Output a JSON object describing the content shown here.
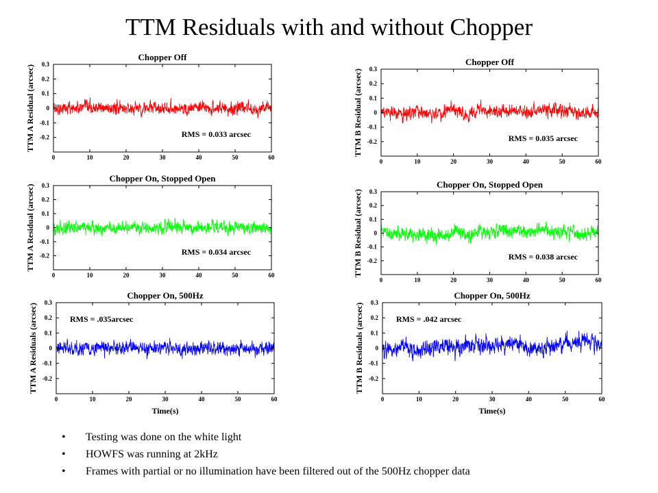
{
  "title": "TTM Residuals with and without Chopper",
  "bullets": [
    {
      "marker": "•",
      "text": "Testing was done on the white light"
    },
    {
      "marker": "•",
      "text": "HOWFS was running at 2kHz"
    },
    {
      "marker": "•",
      "text": "Frames with partial or no illumination have been filtered out of the 500Hz chopper data"
    }
  ],
  "chart_data": [
    {
      "type": "line",
      "title": "Chopper Off",
      "xlabel": "",
      "ylabel": "TTM A Residual (arcsec)",
      "xlim": [
        0,
        60
      ],
      "ylim": [
        -0.3,
        0.3
      ],
      "xticks": [
        "0",
        "10",
        "20",
        "30",
        "40",
        "50",
        "60"
      ],
      "yticks": [
        "0.3",
        "0.2",
        "0.1",
        "0",
        "-0.1",
        "-0.2"
      ],
      "annotation": "RMS = 0.033 arcsec",
      "annotation_corner": "bottom-right",
      "series": [
        {
          "color": "#ff0000",
          "rms": 0.033,
          "mean": 0.0,
          "drift": []
        }
      ],
      "grid": false
    },
    {
      "type": "line",
      "title": "Chopper Off",
      "xlabel": "",
      "ylabel": "TTM B Residual (arcsec)",
      "xlim": [
        0,
        60
      ],
      "ylim": [
        -0.3,
        0.3
      ],
      "xticks": [
        "0",
        "10",
        "20",
        "30",
        "40",
        "50",
        "60"
      ],
      "yticks": [
        "0.3",
        "0.2",
        "0.1",
        "0",
        "-0.1",
        "-0.2"
      ],
      "annotation": "RMS = 0.035 arcsec",
      "annotation_corner": "bottom-right",
      "series": [
        {
          "color": "#ff0000",
          "rms": 0.035,
          "mean": 0.0,
          "drift": [
            [
              0,
              0.01
            ],
            [
              5,
              -0.02
            ],
            [
              10,
              0.01
            ],
            [
              15,
              -0.01
            ],
            [
              20,
              0.02
            ],
            [
              24,
              -0.02
            ],
            [
              27,
              0.04
            ],
            [
              32,
              0.0
            ],
            [
              36,
              0.02
            ],
            [
              40,
              -0.01
            ],
            [
              44,
              0.02
            ],
            [
              50,
              0.02
            ],
            [
              55,
              0.0
            ],
            [
              60,
              0.0
            ]
          ]
        }
      ],
      "grid": false
    },
    {
      "type": "line",
      "title": "Chopper On, Stopped Open",
      "xlabel": "",
      "ylabel": "TTM A Residual (arcsec)",
      "xlim": [
        0,
        60
      ],
      "ylim": [
        -0.3,
        0.3
      ],
      "xticks": [
        "0",
        "10",
        "20",
        "30",
        "40",
        "50",
        "60"
      ],
      "yticks": [
        "0.3",
        "0.2",
        "0.1",
        "0",
        "-0.1",
        "-0.2"
      ],
      "annotation": "RMS = 0.034 arcsec",
      "annotation_corner": "bottom-right",
      "series": [
        {
          "color": "#00ff00",
          "rms": 0.034,
          "mean": 0.0,
          "drift": []
        }
      ],
      "grid": false
    },
    {
      "type": "line",
      "title": "Chopper On, Stopped Open",
      "xlabel": "",
      "ylabel": "TTM B Residual (arcsec)",
      "xlim": [
        0,
        60
      ],
      "ylim": [
        -0.3,
        0.3
      ],
      "xticks": [
        "0",
        "10",
        "20",
        "30",
        "40",
        "50",
        "60"
      ],
      "yticks": [
        "0.3",
        "0.2",
        "0.1",
        "0",
        "-0.1",
        "-0.2"
      ],
      "annotation": "RMS = 0.038 arcsec",
      "annotation_corner": "bottom-right",
      "series": [
        {
          "color": "#00ff00",
          "rms": 0.038,
          "mean": 0.0,
          "drift": [
            [
              0,
              0.02
            ],
            [
              5,
              0.0
            ],
            [
              10,
              -0.01
            ],
            [
              15,
              0.0
            ],
            [
              18,
              -0.02
            ],
            [
              21,
              0.02
            ],
            [
              24,
              -0.03
            ],
            [
              27,
              0.02
            ],
            [
              30,
              0.01
            ],
            [
              35,
              0.02
            ],
            [
              40,
              0.01
            ],
            [
              45,
              0.03
            ],
            [
              50,
              0.01
            ],
            [
              55,
              0.0
            ],
            [
              60,
              0.01
            ]
          ]
        }
      ],
      "grid": false
    },
    {
      "type": "line",
      "title": "Chopper On, 500Hz",
      "xlabel": "Time(s)",
      "ylabel": "TTM A Residuals (arcsec)",
      "xlim": [
        0,
        60
      ],
      "ylim": [
        -0.3,
        0.3
      ],
      "xticks": [
        "0",
        "10",
        "20",
        "30",
        "40",
        "50",
        "60"
      ],
      "yticks": [
        "0.3",
        "0.2",
        "0.1",
        "0",
        "-0.1",
        "-0.2"
      ],
      "annotation": "RMS = .035arcsec",
      "annotation_corner": "top-left",
      "series": [
        {
          "color": "#0000ff",
          "rms": 0.035,
          "mean": 0.0,
          "drift": []
        }
      ],
      "grid": false
    },
    {
      "type": "line",
      "title": "Chopper On, 500Hz",
      "xlabel": "Time(s)",
      "ylabel": "TTM B Residuals (arcsec)",
      "xlim": [
        0,
        60
      ],
      "ylim": [
        -0.3,
        0.3
      ],
      "xticks": [
        "0",
        "10",
        "20",
        "30",
        "40",
        "50",
        "60"
      ],
      "yticks": [
        "0.3",
        "0.2",
        "0.1",
        "0",
        "-0.1",
        "-0.2"
      ],
      "annotation": "RMS = .042 arcsec",
      "annotation_corner": "top-left",
      "series": [
        {
          "color": "#0000ff",
          "rms": 0.042,
          "mean": 0.0,
          "drift": [
            [
              0,
              -0.01
            ],
            [
              5,
              0.0
            ],
            [
              10,
              -0.01
            ],
            [
              15,
              0.02
            ],
            [
              20,
              0.0
            ],
            [
              25,
              0.02
            ],
            [
              30,
              0.01
            ],
            [
              35,
              0.03
            ],
            [
              38,
              0.04
            ],
            [
              40,
              -0.01
            ],
            [
              45,
              0.0
            ],
            [
              50,
              0.03
            ],
            [
              55,
              0.04
            ],
            [
              60,
              0.02
            ]
          ]
        }
      ],
      "grid": false
    }
  ]
}
